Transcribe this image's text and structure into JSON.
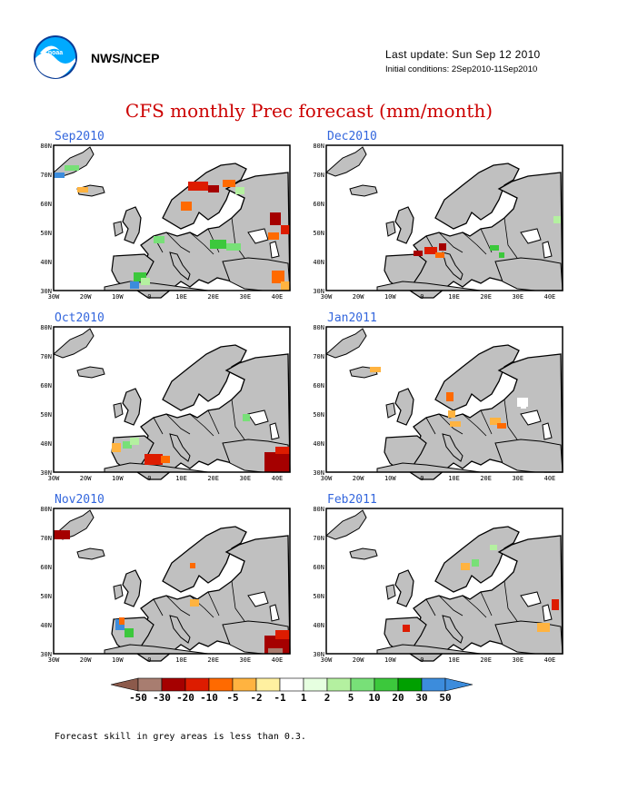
{
  "header": {
    "agency": "NWS/NCEP",
    "last_update": "Last update: Sun Sep 12 2010",
    "initial_conditions": "Initial conditions: 2Sep2010-11Sep2010",
    "logo_icon": "noaa-logo-icon"
  },
  "title": "CFS monthly Prec forecast (mm/month)",
  "panels": [
    {
      "label": "Sep2010"
    },
    {
      "label": "Dec2010"
    },
    {
      "label": "Oct2010"
    },
    {
      "label": "Jan2011"
    },
    {
      "label": "Nov2010"
    },
    {
      "label": "Feb2011"
    }
  ],
  "axes": {
    "lat_labels": [
      "80N",
      "70N",
      "60N",
      "50N",
      "40N",
      "30N"
    ],
    "lon_labels": [
      "30W",
      "20W",
      "10W",
      "0",
      "10E",
      "20E",
      "30E",
      "40E"
    ]
  },
  "colorbar": {
    "labels": [
      "-50",
      "-30",
      "-20",
      "-10",
      "-5",
      "-2",
      "-1",
      "1",
      "2",
      "5",
      "10",
      "20",
      "30",
      "50"
    ],
    "colors": [
      "#8c5a4b",
      "#a87d70",
      "#a50000",
      "#dd1c00",
      "#ff6a00",
      "#ffb340",
      "#fff0a0",
      "#ffffff",
      "#e6ffe0",
      "#b4f0a0",
      "#78e078",
      "#3cc83c",
      "#00a000",
      "#3c8cdc",
      "#3c8cdc"
    ]
  },
  "footnote": "Forecast skill in grey areas is less than 0.3.",
  "colors": {
    "title": "#cc0000",
    "panel_label": "#3366dd",
    "grey_area": "#c0c0c0"
  }
}
